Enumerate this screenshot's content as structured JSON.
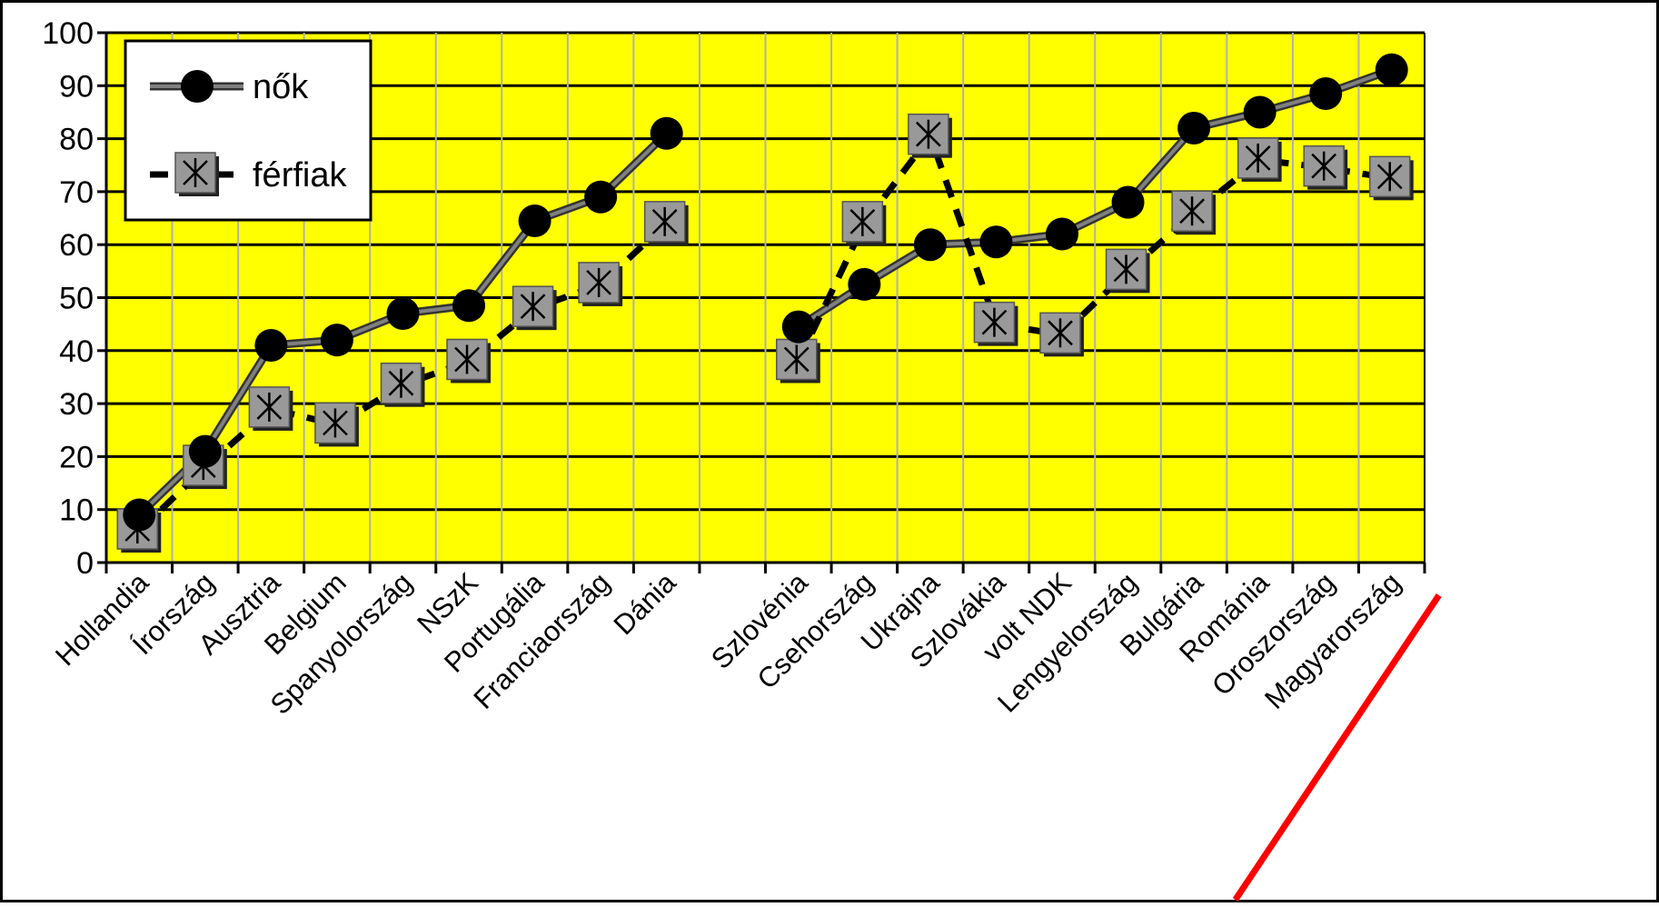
{
  "chart_data": {
    "type": "line",
    "title": "",
    "xlabel": "",
    "ylabel": "",
    "ylim": [
      0,
      100
    ],
    "yticks": [
      "0",
      "10",
      "20",
      "30",
      "40",
      "50",
      "60",
      "70",
      "80",
      "90",
      "100"
    ],
    "grid": true,
    "legend_position": "top-left",
    "colors": {
      "plot_background": "#FFFF00",
      "grid": "#000000",
      "series_line": "#808080",
      "marker_women": "#000000",
      "marker_men_fill": "#999999",
      "highlight_underline": "#FF0000"
    },
    "categories": [
      "Hollandia",
      "Írország",
      "Ausztria",
      "Belgium",
      "Spanyolország",
      "NSzK",
      "Portugália",
      "Franciaország",
      "Dánia",
      "",
      "Szlovénia",
      "Csehország",
      "Ukrajna",
      "Szlovákia",
      "volt NDK",
      "Lengyelország",
      "Bulgária",
      "Románia",
      "Oroszország",
      "Magyarország"
    ],
    "highlighted_category": "Magyarország",
    "series": [
      {
        "name": "nők",
        "marker": "circle",
        "line": "solid",
        "values": [
          9,
          21,
          41,
          42,
          47,
          48.5,
          64.5,
          69,
          81,
          null,
          44.5,
          52.5,
          60,
          60.5,
          62,
          68,
          82,
          85,
          88.5,
          93
        ]
      },
      {
        "name": "férfiak",
        "marker": "square-asterisk",
        "line": "dashed",
        "values": [
          6,
          18,
          29,
          26,
          33.5,
          38,
          48,
          52.5,
          64,
          null,
          38,
          64,
          80.5,
          45,
          43,
          55,
          66,
          76,
          74.5,
          72.5
        ]
      }
    ]
  }
}
